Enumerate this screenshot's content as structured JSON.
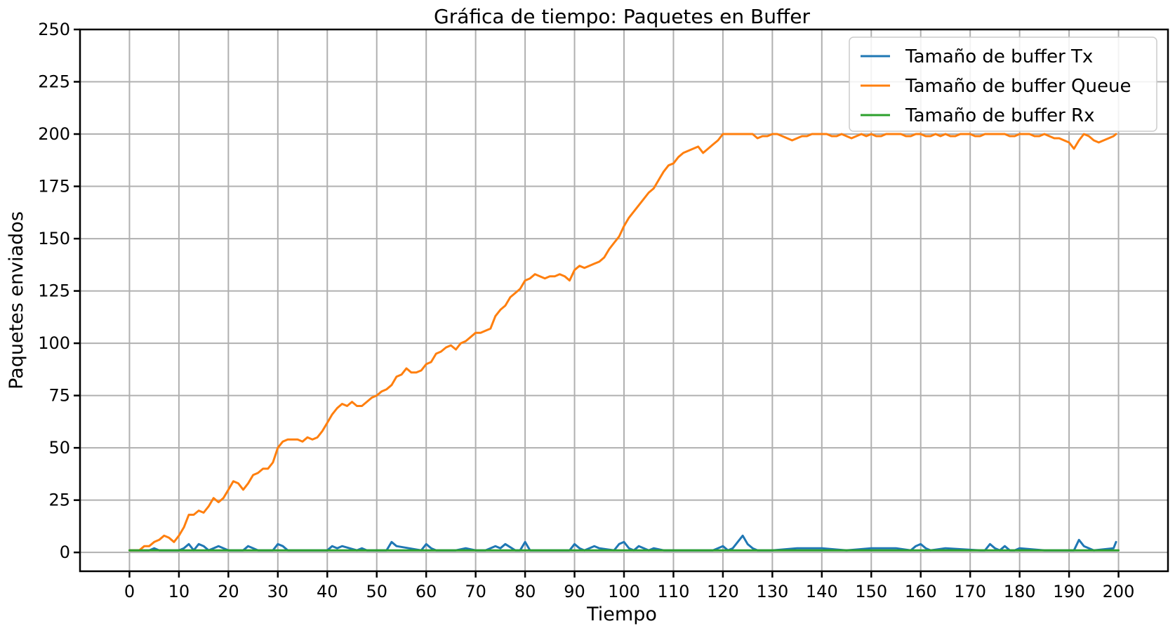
{
  "chart_data": {
    "type": "line",
    "title": "Gráfica de tiempo: Paquetes en Buffer",
    "xlabel": "Tiempo",
    "ylabel": "Paquetes enviados",
    "xlim": [
      -10,
      210
    ],
    "ylim": [
      -9,
      250
    ],
    "xticks": [
      0,
      10,
      20,
      30,
      40,
      50,
      60,
      70,
      80,
      90,
      100,
      110,
      120,
      130,
      140,
      150,
      160,
      170,
      180,
      190,
      200
    ],
    "yticks": [
      0,
      25,
      50,
      75,
      100,
      125,
      150,
      175,
      200,
      225,
      250
    ],
    "grid": true,
    "legend_position": "upper right",
    "series": [
      {
        "name": "Tamaño de buffer Tx",
        "color": "#1f77b4",
        "x": [
          0,
          4,
          5,
          6,
          10,
          11,
          12,
          13,
          14,
          15,
          16,
          18,
          19,
          20,
          23,
          24,
          25,
          26,
          29,
          30,
          31,
          32,
          40,
          41,
          42,
          43,
          46,
          47,
          48,
          52,
          53,
          54,
          59,
          60,
          61,
          62,
          66,
          68,
          70,
          72,
          74,
          75,
          76,
          78,
          79,
          80,
          81,
          83,
          89,
          90,
          91,
          92,
          93,
          94,
          95,
          98,
          99,
          100,
          101,
          102,
          103,
          105,
          106,
          108,
          115,
          118,
          119,
          120,
          121,
          122,
          123,
          124,
          125,
          126,
          127,
          130,
          135,
          140,
          145,
          150,
          155,
          158,
          159,
          160,
          161,
          162,
          165,
          172,
          173,
          174,
          175,
          176,
          177,
          178,
          179,
          180,
          185,
          191,
          192,
          193,
          194,
          195,
          199,
          199.5
        ],
        "y": [
          1,
          1,
          2,
          1,
          1,
          2,
          4,
          1,
          4,
          3,
          1,
          3,
          2,
          1,
          1,
          3,
          2,
          1,
          1,
          4,
          3,
          1,
          1,
          3,
          2,
          3,
          1,
          2,
          1,
          1,
          5,
          3,
          1,
          4,
          2,
          1,
          1,
          2,
          1,
          1,
          3,
          2,
          4,
          1,
          1,
          5,
          1,
          1,
          1,
          4,
          2,
          1,
          2,
          3,
          2,
          1,
          4,
          5,
          2,
          1,
          3,
          1,
          2,
          1,
          1,
          1,
          2,
          3,
          1,
          2,
          5,
          8,
          4,
          2,
          1,
          1,
          2,
          2,
          1,
          2,
          2,
          1,
          3,
          4,
          2,
          1,
          2,
          1,
          1,
          4,
          2,
          1,
          3,
          1,
          1,
          2,
          1,
          1,
          6,
          3,
          2,
          1,
          2,
          5
        ]
      },
      {
        "name": "Tamaño de buffer Queue",
        "color": "#ff7f0e",
        "x": [
          0,
          2,
          3,
          4,
          5,
          6,
          7,
          8,
          9,
          10,
          11,
          12,
          13,
          14,
          15,
          16,
          17,
          18,
          19,
          20,
          21,
          22,
          23,
          24,
          25,
          26,
          27,
          28,
          29,
          30,
          31,
          32,
          33,
          34,
          35,
          36,
          37,
          38,
          39,
          40,
          41,
          42,
          43,
          44,
          45,
          46,
          47,
          48,
          49,
          50,
          51,
          52,
          53,
          54,
          55,
          56,
          57,
          58,
          59,
          60,
          61,
          62,
          63,
          64,
          65,
          66,
          67,
          68,
          69,
          70,
          71,
          72,
          73,
          74,
          75,
          76,
          77,
          78,
          79,
          80,
          81,
          82,
          83,
          84,
          85,
          86,
          87,
          88,
          89,
          90,
          91,
          92,
          93,
          94,
          95,
          96,
          97,
          98,
          99,
          100,
          101,
          102,
          103,
          104,
          105,
          106,
          107,
          108,
          109,
          110,
          111,
          112,
          113,
          114,
          115,
          116,
          117,
          118,
          119,
          120,
          121,
          122,
          123,
          124,
          125,
          126,
          127,
          128,
          129,
          130,
          131,
          132,
          133,
          134,
          135,
          136,
          137,
          138,
          139,
          140,
          141,
          142,
          143,
          144,
          145,
          146,
          147,
          148,
          149,
          150,
          151,
          152,
          153,
          154,
          155,
          156,
          157,
          158,
          159,
          160,
          161,
          162,
          163,
          164,
          165,
          166,
          167,
          168,
          169,
          170,
          171,
          172,
          173,
          174,
          175,
          176,
          177,
          178,
          179,
          180,
          181,
          182,
          183,
          184,
          185,
          186,
          187,
          188,
          189,
          190,
          191,
          192,
          193,
          194,
          195,
          196,
          197,
          198,
          199,
          199.5
        ],
        "y": [
          1,
          1,
          3,
          3,
          5,
          6,
          8,
          7,
          5,
          8,
          12,
          18,
          18,
          20,
          19,
          22,
          26,
          24,
          26,
          30,
          34,
          33,
          30,
          33,
          37,
          38,
          40,
          40,
          43,
          50,
          53,
          54,
          54,
          54,
          53,
          55,
          54,
          55,
          58,
          62,
          66,
          69,
          71,
          70,
          72,
          70,
          70,
          72,
          74,
          75,
          77,
          78,
          80,
          84,
          85,
          88,
          86,
          86,
          87,
          90,
          91,
          95,
          96,
          98,
          99,
          97,
          100,
          101,
          103,
          105,
          105,
          106,
          107,
          113,
          116,
          118,
          122,
          124,
          126,
          130,
          131,
          133,
          132,
          131,
          132,
          132,
          133,
          132,
          130,
          135,
          137,
          136,
          137,
          138,
          139,
          141,
          145,
          148,
          151,
          156,
          160,
          163,
          166,
          169,
          172,
          174,
          178,
          182,
          185,
          186,
          189,
          191,
          192,
          193,
          194,
          191,
          193,
          195,
          197,
          200,
          200,
          200,
          200,
          200,
          200,
          200,
          198,
          199,
          199,
          200,
          200,
          199,
          198,
          197,
          198,
          199,
          199,
          200,
          200,
          200,
          200,
          199,
          199,
          200,
          199,
          198,
          199,
          200,
          199,
          200,
          199,
          199,
          200,
          200,
          200,
          200,
          199,
          199,
          200,
          200,
          199,
          199,
          200,
          199,
          200,
          199,
          199,
          200,
          200,
          200,
          199,
          199,
          200,
          200,
          200,
          200,
          200,
          199,
          199,
          200,
          200,
          200,
          199,
          199,
          200,
          199,
          198,
          198,
          197,
          196,
          193,
          197,
          200,
          199,
          197,
          196,
          197,
          198,
          199,
          200
        ]
      },
      {
        "name": "Tamaño de buffer Rx",
        "color": "#2ca02c",
        "x": [
          0,
          200
        ],
        "y": [
          1,
          1
        ]
      }
    ]
  }
}
